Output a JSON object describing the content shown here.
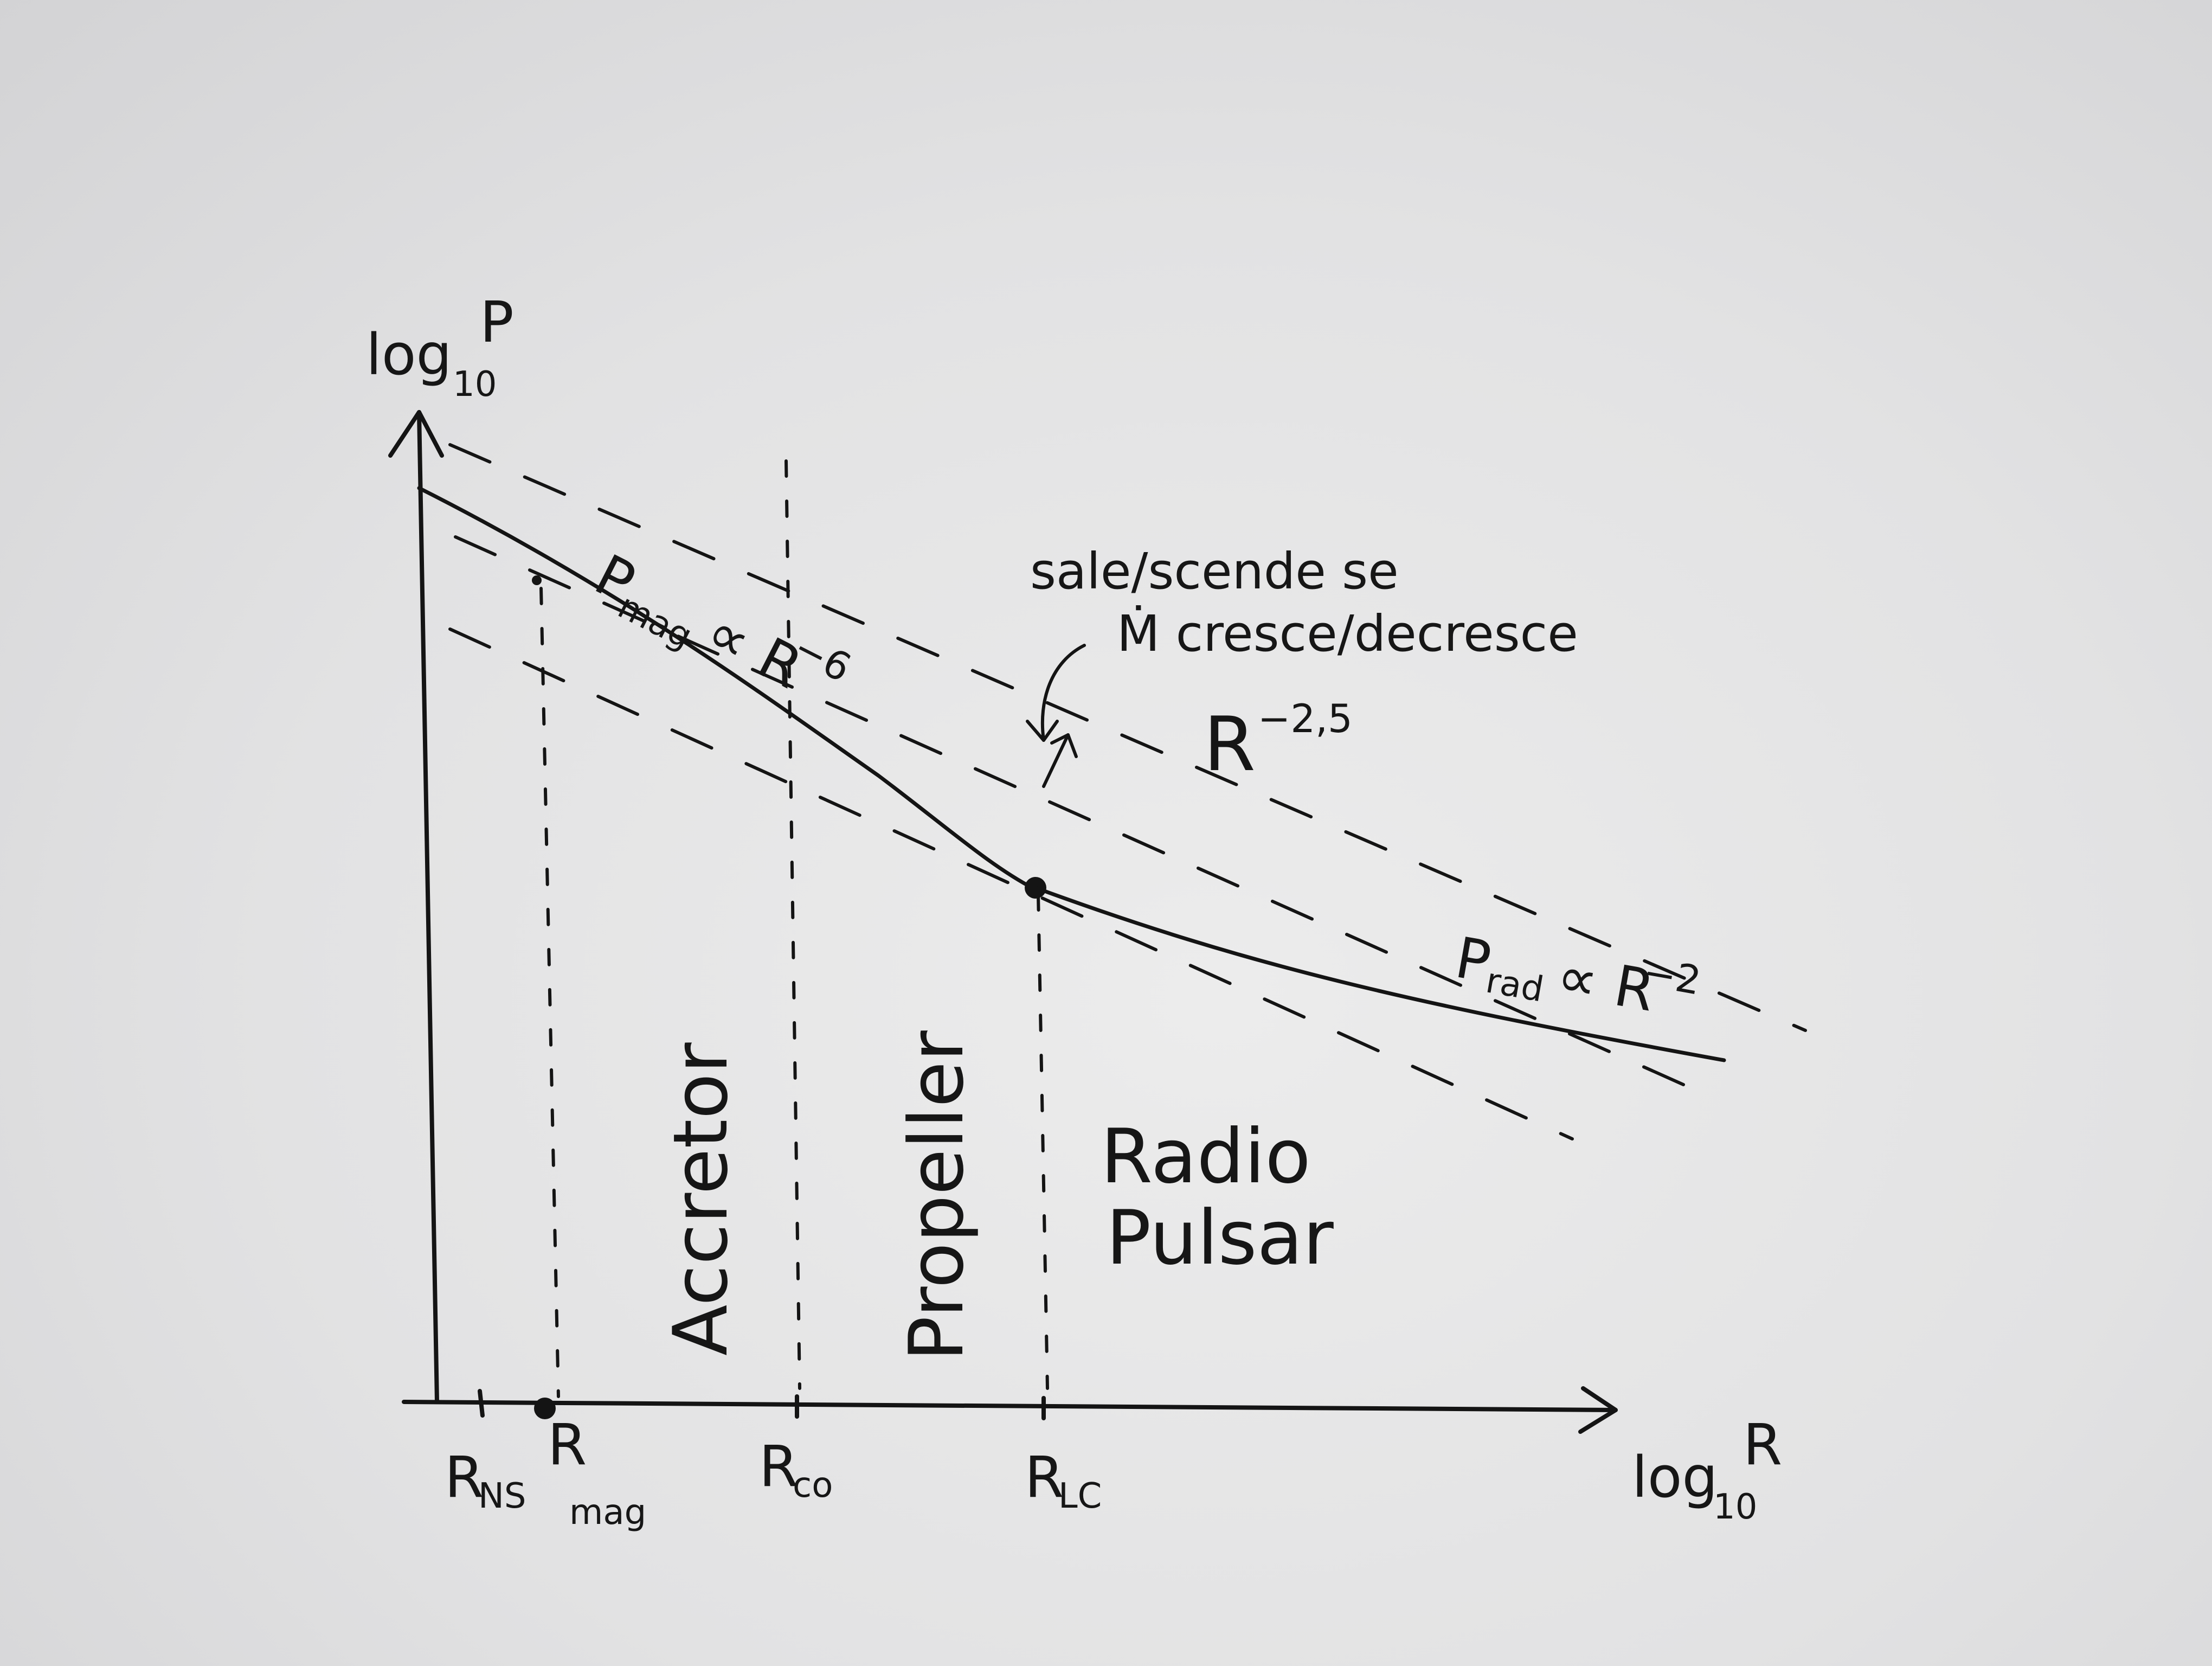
{
  "axes": {
    "y_label": "log",
    "y_label_sub": "10",
    "y_label_var": "P",
    "x_label": "log",
    "x_label_sub": "10",
    "x_label_var": "R"
  },
  "x_ticks": {
    "r_ns": "R",
    "r_ns_sub": "NS",
    "r_mag": "R",
    "r_mag_sub": "mag",
    "r_co": "R",
    "r_co_sub": "co",
    "r_lc": "R",
    "r_lc_sub": "LC"
  },
  "regions": {
    "accretor": "Accretor",
    "propeller": "Propeller",
    "radio": "Radio",
    "pulsar": "Pulsar"
  },
  "curve_labels": {
    "p_mag": "P",
    "p_mag_sub": "mag",
    "p_mag_rel": "∝ R",
    "p_mag_exp": "−6",
    "p_rad": "P",
    "p_rad_sub": "rad",
    "p_rad_rel": "∝ R",
    "p_rad_exp": "−2",
    "r_slope": "R",
    "r_slope_exp": "−2,5"
  },
  "annotation": {
    "line1": "sale/scende se",
    "line2": "Ṁ cresce/decresce"
  },
  "colors": {
    "ink": "#141414",
    "paper": "#e6e6e7"
  }
}
